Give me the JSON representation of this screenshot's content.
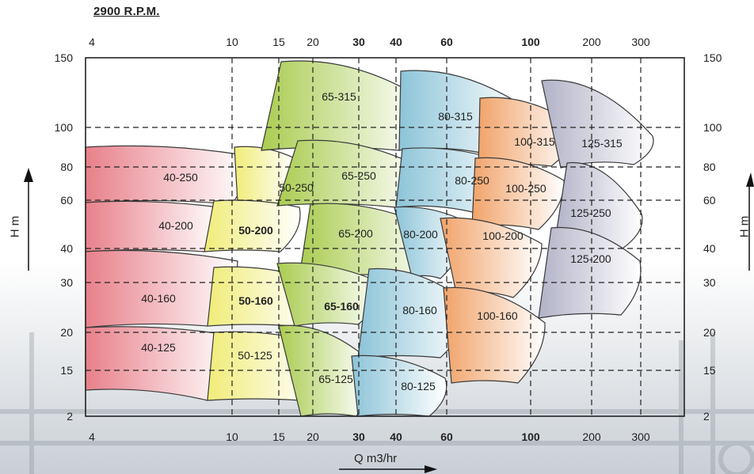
{
  "speed_label": "2900 R.P.M.",
  "xlabel": "Q m3/hr",
  "ylabel": "H m",
  "colors": {
    "family_40": "#e8808a",
    "family_50": "#f0ec78",
    "family_65": "#a9cc50",
    "family_80": "#8cc4d8",
    "family_100": "#f1a36a",
    "family_125": "#b2b2c8",
    "grid": "#222222"
  },
  "chart_data": {
    "type": "area",
    "title": "2900 R.P.M.",
    "xlabel": "Q m3/hr",
    "ylabel": "H m",
    "x_ticks": [
      "4",
      "10",
      "15",
      "20",
      "30",
      "40",
      "60",
      "100",
      "200",
      "300"
    ],
    "y_ticks": [
      "150",
      "100",
      "80",
      "60",
      "40",
      "30",
      "20",
      "15",
      "2"
    ],
    "grid": true,
    "regions": [
      {
        "name": "40-250",
        "family": "40"
      },
      {
        "name": "40-200",
        "family": "40"
      },
      {
        "name": "40-160",
        "family": "40"
      },
      {
        "name": "40-125",
        "family": "40"
      },
      {
        "name": "50-250",
        "family": "50"
      },
      {
        "name": "50-200",
        "family": "50"
      },
      {
        "name": "50-160",
        "family": "50"
      },
      {
        "name": "50-125",
        "family": "50"
      },
      {
        "name": "65-315",
        "family": "65"
      },
      {
        "name": "65-250",
        "family": "65"
      },
      {
        "name": "65-200",
        "family": "65"
      },
      {
        "name": "65-160",
        "family": "65"
      },
      {
        "name": "65-125",
        "family": "65"
      },
      {
        "name": "80-315",
        "family": "80"
      },
      {
        "name": "80-250",
        "family": "80"
      },
      {
        "name": "80-200",
        "family": "80"
      },
      {
        "name": "80-160",
        "family": "80"
      },
      {
        "name": "80-125",
        "family": "80"
      },
      {
        "name": "100-315",
        "family": "100"
      },
      {
        "name": "100-250",
        "family": "100"
      },
      {
        "name": "100-200",
        "family": "100"
      },
      {
        "name": "100-160",
        "family": "100"
      },
      {
        "name": "125-315",
        "family": "125"
      },
      {
        "name": "125-250",
        "family": "125"
      },
      {
        "name": "125-200",
        "family": "125"
      }
    ]
  }
}
